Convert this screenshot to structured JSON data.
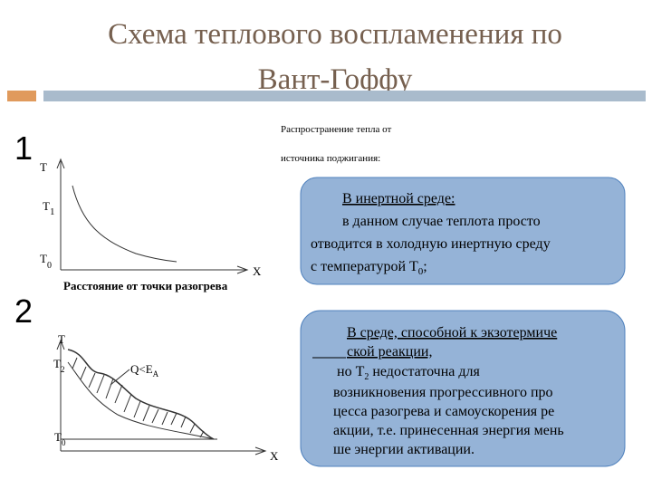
{
  "header": {
    "title_lines": [
      "Схема теплового воспламенения по",
      "Вант-Гоффу"
    ]
  },
  "intro": [
    "Распространение тепла от",
    "источника поджигания:"
  ],
  "diagram1": {
    "number": "1",
    "y_axis": "T",
    "x_axis": "X",
    "t_high": {
      "main": "T",
      "sub": "1"
    },
    "t_low": {
      "main": "T",
      "sub": "0"
    },
    "caption": "Расстояние от точки разогрева"
  },
  "diagram2": {
    "number": "2",
    "y_axis": "T",
    "x_axis": "X",
    "t_high": {
      "main": "T",
      "sub": "2"
    },
    "t_low": {
      "main": "T",
      "sub": "0"
    },
    "annotation": {
      "main": "Q<E",
      "sub": "A"
    }
  },
  "box1": {
    "heading": "В инертной среде:",
    "lines": [
      "в данном случае   теплота просто",
      "отводится в холодную инертную среду"
    ],
    "last": [
      "с температурой  T",
      "0",
      ";"
    ]
  },
  "box2": {
    "first": "В среде, способной к экзотермиче",
    "heading": "ской реакции,",
    "t_line": [
      "но T",
      "2",
      " недостаточна для"
    ],
    "lines": [
      "возникновения прогрессивного про",
      "цесса разогрева и самоускорения ре",
      "акции, т.е. принесенная энергия мень",
      "ше энергии активации."
    ]
  }
}
